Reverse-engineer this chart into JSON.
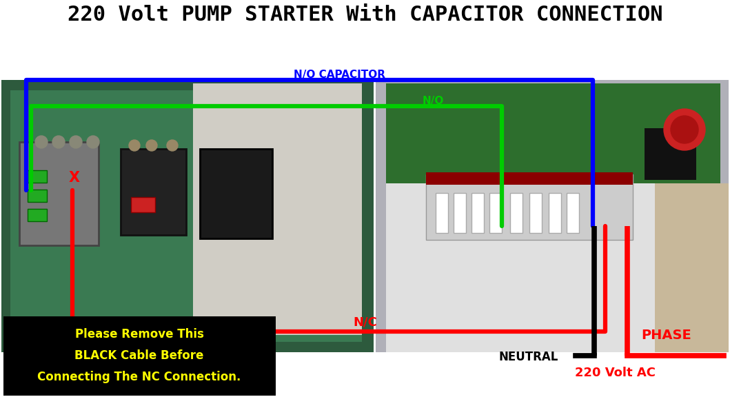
{
  "title": "220 Volt PUMP STARTER With CAPACITOR CONNECTION",
  "title_fontsize": 22,
  "title_fontweight": "bold",
  "title_color": "#000000",
  "bg_color": "#ffffff",
  "fig_width": 10.59,
  "fig_height": 5.76,
  "blue_wire_label": "N/O CAPACITOR",
  "green_wire_label": "N/O",
  "red_wire_label": "N/C",
  "neutral_label": "NEUTRAL",
  "phase_label": "PHASE",
  "voltage_label": "220 Volt AC",
  "notice_text": "Please Remove This\nBLACK Cable Before\nConnecting The NC Connection.",
  "notice_bg": "#000000",
  "notice_text_color": "#ffff00",
  "blue_color": "#0000ff",
  "green_color": "#00cc00",
  "red_color": "#ff0000",
  "black_color": "#000000",
  "yellow_color": "#ffff00",
  "wire_lw": 3.5
}
